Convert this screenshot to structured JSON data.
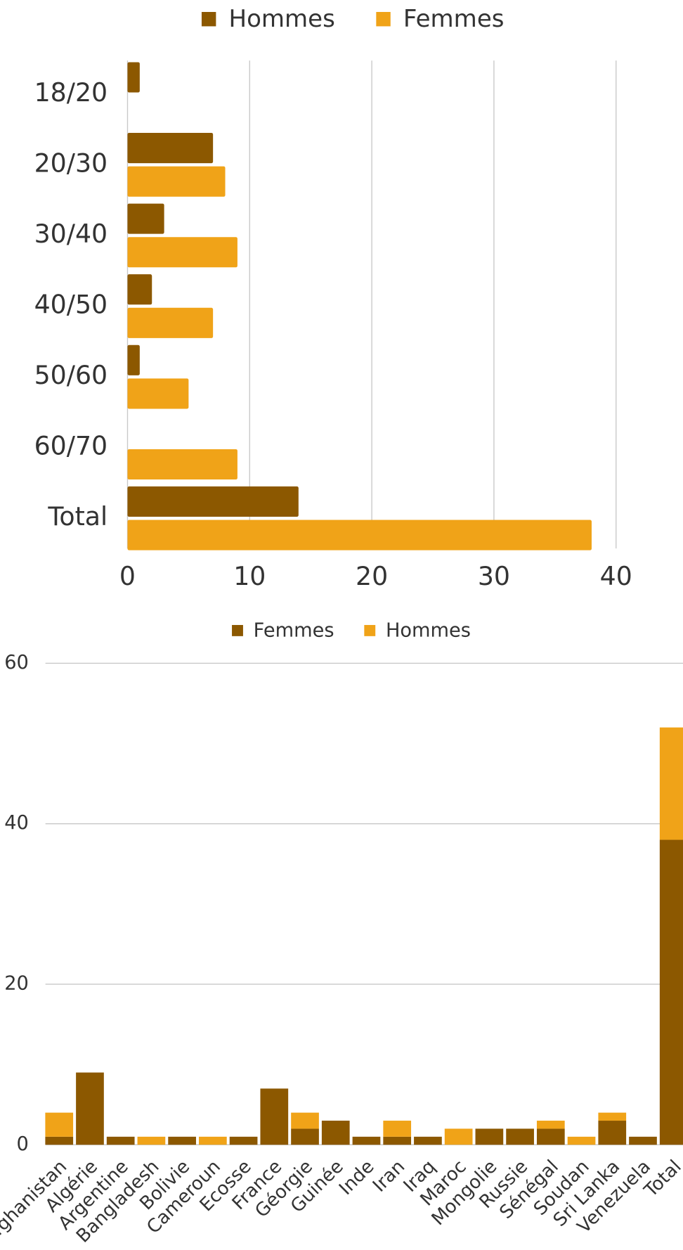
{
  "charts": [
    {
      "type": "hbar",
      "categories": [
        "18/20",
        "20/30",
        "30/40",
        "40/50",
        "50/60",
        "60/70",
        "Total"
      ],
      "series": [
        {
          "name": "Hommes",
          "color": "#8c5800",
          "values": [
            1,
            7,
            3,
            2,
            1,
            0,
            14
          ]
        },
        {
          "name": "Femmes",
          "color": "#f0a318",
          "values": [
            0,
            8,
            9,
            7,
            5,
            9,
            38
          ]
        }
      ],
      "xlim": [
        0,
        40
      ],
      "xticks": [
        0,
        10,
        20,
        30,
        40
      ],
      "grid": true
    },
    {
      "type": "stacked-bar",
      "categories": [
        "Afghanistan",
        "Algérie",
        "Argentine",
        "Bangladesh",
        "Bolivie",
        "Cameroun",
        "Ecosse",
        "France",
        "Géorgie",
        "Guinée",
        "Inde",
        "Iran",
        "Iraq",
        "Maroc",
        "Mongolie",
        "Russie",
        "Sénégal",
        "Soudan",
        "Sri Lanka",
        "Venezuela",
        "Total"
      ],
      "series": [
        {
          "name": "Femmes",
          "color": "#8c5800",
          "values": [
            1,
            9,
            1,
            0,
            1,
            0,
            1,
            7,
            2,
            3,
            1,
            1,
            1,
            0,
            2,
            2,
            2,
            0,
            3,
            1,
            38
          ]
        },
        {
          "name": "Hommes",
          "color": "#f0a318",
          "values": [
            3,
            0,
            0,
            1,
            0,
            1,
            0,
            0,
            2,
            0,
            0,
            2,
            0,
            2,
            0,
            0,
            1,
            1,
            1,
            0,
            14
          ]
        }
      ],
      "ylim": [
        0,
        60
      ],
      "yticks": [
        0,
        20,
        40,
        60
      ],
      "grid": true
    }
  ]
}
